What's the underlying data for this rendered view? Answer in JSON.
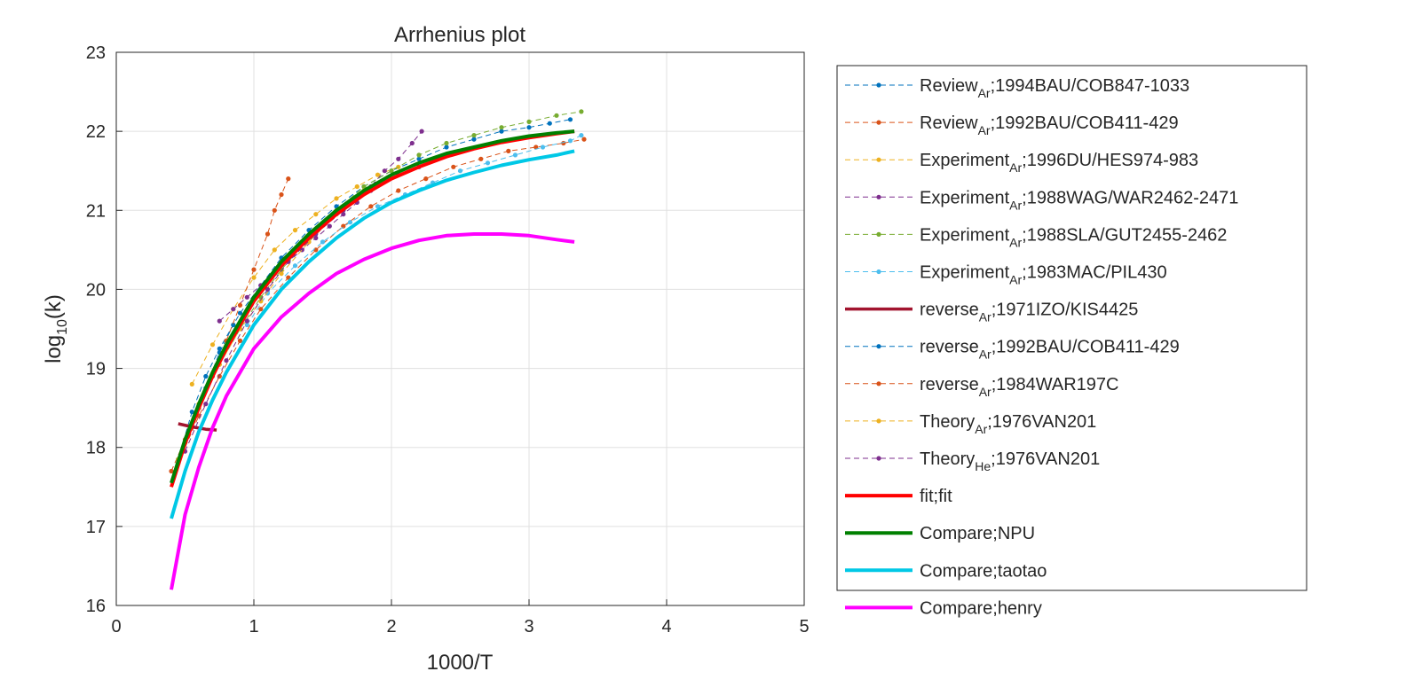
{
  "chart_data": {
    "type": "line",
    "title": "Arrhenius plot",
    "xlabel": "1000/T",
    "ylabel_base": "log",
    "ylabel_sub": "10",
    "ylabel_tail": "(k)",
    "xlim": [
      0,
      5
    ],
    "ylim": [
      16,
      23
    ],
    "xticks": [
      "0",
      "1",
      "2",
      "3",
      "4",
      "5"
    ],
    "yticks": [
      "16",
      "17",
      "18",
      "19",
      "20",
      "21",
      "22",
      "23"
    ],
    "grid": true,
    "legend_position": "outside-right",
    "series": [
      {
        "name": "Review",
        "sub": "Ar",
        "suffix": ";1994BAU/COB847-1033",
        "color": "#0072BD",
        "style": "dashed-dots",
        "x": [
          0.45,
          0.55,
          0.65,
          0.75,
          0.9,
          1.05,
          1.2,
          1.4,
          1.6,
          1.8,
          2.0,
          2.2,
          2.4,
          2.6,
          2.8,
          3.0,
          3.15,
          3.3
        ],
        "y": [
          17.85,
          18.45,
          18.9,
          19.25,
          19.7,
          20.05,
          20.4,
          20.75,
          21.05,
          21.3,
          21.5,
          21.65,
          21.8,
          21.9,
          22.0,
          22.05,
          22.1,
          22.15
        ]
      },
      {
        "name": "Review",
        "sub": "Ar",
        "suffix": ";1992BAU/COB411-429",
        "color": "#D95319",
        "style": "dashed-dots",
        "x": [
          0.45,
          0.6,
          0.75,
          0.9,
          1.05,
          1.25,
          1.45,
          1.65,
          1.85,
          2.05,
          2.25,
          2.45,
          2.65,
          2.85,
          3.05,
          3.25,
          3.4
        ],
        "y": [
          17.8,
          18.4,
          18.9,
          19.35,
          19.75,
          20.15,
          20.5,
          20.8,
          21.05,
          21.25,
          21.4,
          21.55,
          21.65,
          21.75,
          21.8,
          21.85,
          21.9
        ]
      },
      {
        "name": "Experiment",
        "sub": "Ar",
        "suffix": ";1996DU/HES974-983",
        "color": "#EDB120",
        "style": "dashed-dots",
        "x": [
          0.55,
          0.7,
          0.85,
          1.0,
          1.15,
          1.3,
          1.45,
          1.6,
          1.75,
          1.9,
          2.05
        ],
        "y": [
          18.8,
          19.3,
          19.75,
          20.15,
          20.5,
          20.75,
          20.95,
          21.15,
          21.3,
          21.45,
          21.55
        ]
      },
      {
        "name": "Experiment",
        "sub": "Ar",
        "suffix": ";1988WAG/WAR2462-2471",
        "color": "#7E2F8E",
        "style": "dashed-dots",
        "x": [
          0.75,
          0.85,
          0.95,
          1.05,
          1.15,
          1.25,
          1.35,
          1.45,
          1.55,
          1.65,
          1.75,
          1.85,
          1.95,
          2.05,
          2.15,
          2.22
        ],
        "y": [
          19.6,
          19.75,
          19.9,
          20.05,
          20.2,
          20.35,
          20.5,
          20.65,
          20.8,
          20.95,
          21.1,
          21.3,
          21.5,
          21.65,
          21.85,
          22.0
        ]
      },
      {
        "name": "Experiment",
        "sub": "Ar",
        "suffix": ";1988SLA/GUT2455-2462",
        "color": "#77AC30",
        "style": "dashed-dots",
        "x": [
          0.45,
          0.6,
          0.75,
          0.9,
          1.05,
          1.2,
          1.4,
          1.6,
          1.8,
          2.0,
          2.2,
          2.4,
          2.6,
          2.8,
          3.0,
          3.2,
          3.38
        ],
        "y": [
          17.8,
          18.5,
          19.05,
          19.5,
          19.9,
          20.25,
          20.65,
          21.0,
          21.3,
          21.5,
          21.7,
          21.85,
          21.95,
          22.05,
          22.12,
          22.2,
          22.25
        ]
      },
      {
        "name": "Experiment",
        "sub": "Ar",
        "suffix": ";1983MAC/PIL430",
        "color": "#4DBEEE",
        "style": "dashed-dots",
        "x": [
          0.95,
          1.1,
          1.3,
          1.5,
          1.7,
          1.9,
          2.1,
          2.3,
          2.5,
          2.7,
          2.9,
          3.1,
          3.3,
          3.38
        ],
        "y": [
          19.55,
          19.95,
          20.3,
          20.6,
          20.85,
          21.05,
          21.2,
          21.35,
          21.5,
          21.6,
          21.7,
          21.8,
          21.88,
          21.95
        ]
      },
      {
        "name": "reverse",
        "sub": "Ar",
        "suffix": ";1971IZO/KIS4425",
        "color": "#A2142F",
        "style": "thick",
        "x": [
          0.45,
          0.55,
          0.65,
          0.73
        ],
        "y": [
          18.3,
          18.26,
          18.23,
          18.22
        ]
      },
      {
        "name": "reverse",
        "sub": "Ar",
        "suffix": ";1992BAU/COB411-429",
        "color": "#0072BD",
        "style": "dashed-dots",
        "x": [
          0.45,
          0.55,
          0.65,
          0.75,
          0.85
        ],
        "y": [
          17.85,
          18.3,
          18.75,
          19.2,
          19.55
        ]
      },
      {
        "name": "reverse",
        "sub": "Ar",
        "suffix": ";1984WAR197C",
        "color": "#D95319",
        "style": "dashed-dots",
        "x": [
          0.4,
          0.5,
          0.6,
          0.7,
          0.8,
          0.9,
          1.0,
          1.1,
          1.15,
          1.2,
          1.25
        ],
        "y": [
          17.7,
          18.1,
          18.5,
          18.9,
          19.35,
          19.8,
          20.25,
          20.7,
          21.0,
          21.2,
          21.4
        ]
      },
      {
        "name": "Theory",
        "sub": "Ar",
        "suffix": ";1976VAN201",
        "color": "#EDB120",
        "style": "dashed-dots",
        "x": [
          0.45,
          0.6,
          0.75,
          0.9,
          1.05,
          1.2,
          1.4,
          1.6,
          1.8
        ],
        "y": [
          17.85,
          18.55,
          19.05,
          19.5,
          19.85,
          20.2,
          20.6,
          20.95,
          21.25
        ]
      },
      {
        "name": "Theory",
        "sub": "He",
        "suffix": ";1976VAN201",
        "color": "#7E2F8E",
        "style": "dashed-dots",
        "x": [
          0.5,
          0.65,
          0.8,
          0.95,
          1.1,
          1.25,
          1.45,
          1.65,
          1.85,
          2.05,
          2.2
        ],
        "y": [
          17.95,
          18.55,
          19.1,
          19.6,
          20.0,
          20.35,
          20.7,
          21.0,
          21.25,
          21.45,
          21.55
        ]
      },
      {
        "name": "fit;fit",
        "sub": "",
        "suffix": "",
        "color": "#FF0000",
        "style": "solid",
        "x": [
          0.4,
          0.5,
          0.6,
          0.7,
          0.8,
          0.9,
          1.0,
          1.2,
          1.4,
          1.6,
          1.8,
          2.0,
          2.2,
          2.4,
          2.6,
          2.8,
          3.0,
          3.2,
          3.33
        ],
        "y": [
          17.5,
          18.05,
          18.5,
          18.9,
          19.25,
          19.55,
          19.85,
          20.3,
          20.65,
          20.95,
          21.2,
          21.4,
          21.55,
          21.68,
          21.78,
          21.86,
          21.92,
          21.97,
          22.0
        ]
      },
      {
        "name": "Compare;NPU",
        "sub": "",
        "suffix": "",
        "color": "#008000",
        "style": "solid",
        "x": [
          0.4,
          0.5,
          0.6,
          0.7,
          0.8,
          0.9,
          1.0,
          1.2,
          1.4,
          1.6,
          1.8,
          2.0,
          2.2,
          2.4,
          2.6,
          2.8,
          3.0,
          3.2,
          3.33
        ],
        "y": [
          17.55,
          18.1,
          18.55,
          18.95,
          19.3,
          19.6,
          19.9,
          20.35,
          20.7,
          21.0,
          21.25,
          21.45,
          21.6,
          21.72,
          21.8,
          21.88,
          21.94,
          21.98,
          22.0
        ]
      },
      {
        "name": "Compare;taotao",
        "sub": "",
        "suffix": "",
        "color": "#00C8E6",
        "style": "solid",
        "x": [
          0.4,
          0.5,
          0.6,
          0.7,
          0.8,
          0.9,
          1.0,
          1.2,
          1.4,
          1.6,
          1.8,
          2.0,
          2.2,
          2.4,
          2.6,
          2.8,
          3.0,
          3.2,
          3.33
        ],
        "y": [
          17.1,
          17.7,
          18.2,
          18.6,
          18.95,
          19.25,
          19.55,
          20.0,
          20.35,
          20.65,
          20.9,
          21.1,
          21.25,
          21.38,
          21.48,
          21.57,
          21.64,
          21.7,
          21.75
        ]
      },
      {
        "name": "Compare;henry",
        "sub": "",
        "suffix": "",
        "color": "#FF00FF",
        "style": "solid",
        "x": [
          0.4,
          0.5,
          0.6,
          0.7,
          0.8,
          0.9,
          1.0,
          1.2,
          1.4,
          1.6,
          1.8,
          2.0,
          2.2,
          2.4,
          2.6,
          2.8,
          3.0,
          3.2,
          3.33
        ],
        "y": [
          16.2,
          17.15,
          17.75,
          18.25,
          18.65,
          18.95,
          19.25,
          19.65,
          19.95,
          20.2,
          20.38,
          20.52,
          20.62,
          20.68,
          20.7,
          20.7,
          20.68,
          20.63,
          20.6
        ]
      }
    ]
  }
}
